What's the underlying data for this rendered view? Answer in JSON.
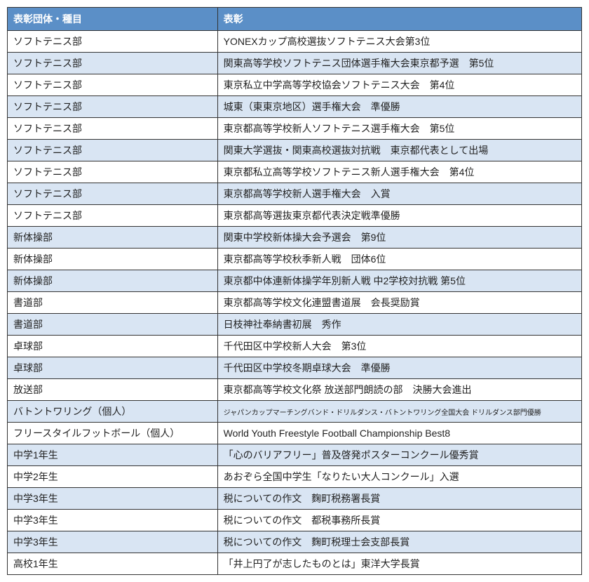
{
  "table": {
    "columns": [
      "表彰団体・種目",
      "表彰"
    ],
    "rows": [
      {
        "c1": "ソフトテニス部",
        "c2": "YONEXカップ高校選抜ソフトテニス大会第3位",
        "small": false
      },
      {
        "c1": "ソフトテニス部",
        "c2": "関東高等学校ソフトテニス団体選手権大会東京都予選　第5位",
        "small": false
      },
      {
        "c1": "ソフトテニス部",
        "c2": "東京私立中学高等学校協会ソフトテニス大会　第4位",
        "small": false
      },
      {
        "c1": "ソフトテニス部",
        "c2": "城東（東東京地区）選手権大会　準優勝",
        "small": false
      },
      {
        "c1": "ソフトテニス部",
        "c2": "東京都高等学校新人ソフトテニス選手権大会　第5位",
        "small": false
      },
      {
        "c1": "ソフトテニス部",
        "c2": "関東大学選抜・関東高校選抜対抗戦　東京都代表として出場",
        "small": false
      },
      {
        "c1": "ソフトテニス部",
        "c2": "東京都私立高等学校ソフトテニス新人選手権大会　第4位",
        "small": false
      },
      {
        "c1": "ソフトテニス部",
        "c2": "東京都高等学校新人選手権大会　入賞",
        "small": false
      },
      {
        "c1": "ソフトテニス部",
        "c2": "東京都高等選抜東京都代表決定戦準優勝",
        "small": false
      },
      {
        "c1": "新体操部",
        "c2": "関東中学校新体操大会予選会　第9位",
        "small": false
      },
      {
        "c1": "新体操部",
        "c2": "東京都高等学校秋季新人戦　団体6位",
        "small": false
      },
      {
        "c1": "新体操部",
        "c2": "東京都中体連新体操学年別新人戦 中2学校対抗戦 第5位",
        "small": false
      },
      {
        "c1": "書道部",
        "c2": "東京都高等学校文化連盟書道展　会長奨励賞",
        "small": false
      },
      {
        "c1": "書道部",
        "c2": "日枝神社奉納書初展　秀作",
        "small": false
      },
      {
        "c1": "卓球部",
        "c2": "千代田区中学校新人大会　第3位",
        "small": false
      },
      {
        "c1": "卓球部",
        "c2": "千代田区中学校冬期卓球大会　準優勝",
        "small": false
      },
      {
        "c1": "放送部",
        "c2": "東京都高等学校文化祭 放送部門朗読の部　決勝大会進出",
        "small": false
      },
      {
        "c1": "バトントワリング（個人）",
        "c2": "ジャパンカップマーチングバンド・ドリルダンス・バトントワリング全国大会 ドリルダンス部門優勝",
        "small": true
      },
      {
        "c1": "フリースタイルフットボール（個人）",
        "c2": "World Youth Freestyle Football Championship Best8",
        "small": false
      },
      {
        "c1": "中学1年生",
        "c2": "「心のバリアフリー」普及啓発ポスターコンクール優秀賞",
        "small": false
      },
      {
        "c1": "中学2年生",
        "c2": "あおぞら全国中学生「なりたい大人コンクール」入選",
        "small": false
      },
      {
        "c1": "中学3年生",
        "c2": "税についての作文　麴町税務署長賞",
        "small": false
      },
      {
        "c1": "中学3年生",
        "c2": "税についての作文　都税事務所長賞",
        "small": false
      },
      {
        "c1": "中学3年生",
        "c2": "税についての作文　麴町税理士会支部長賞",
        "small": false
      },
      {
        "c1": "高校1年生",
        "c2": "「井上円了が志したものとは」東洋大学長賞",
        "small": false
      }
    ]
  }
}
